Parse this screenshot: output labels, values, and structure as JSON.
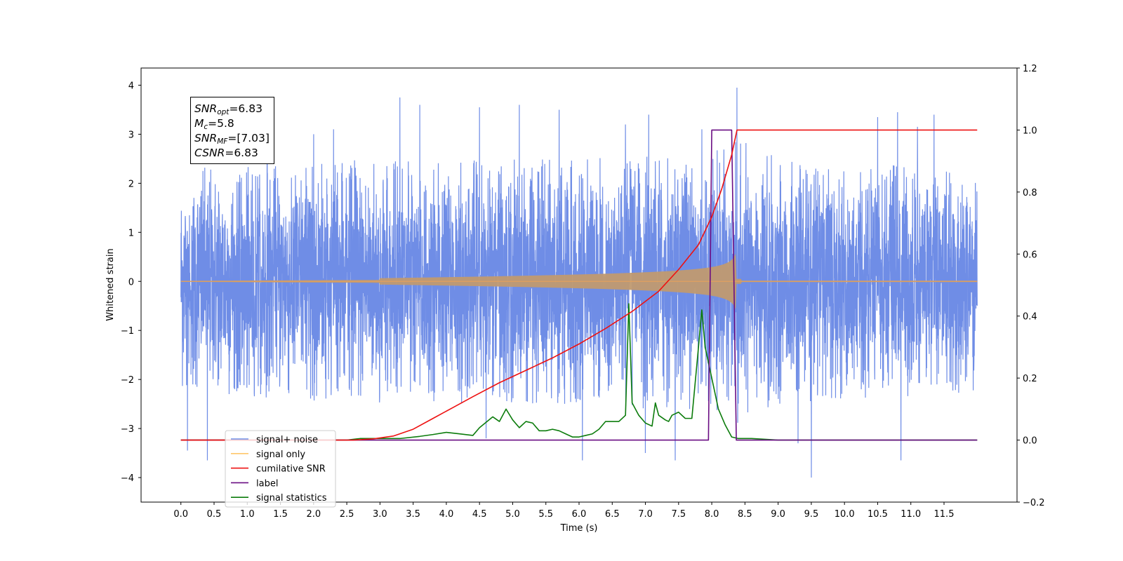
{
  "chart_data": {
    "type": "line",
    "xlabel": "Time (s)",
    "ylabel": "Whitened strain",
    "xlim": [
      -0.6,
      12.6
    ],
    "ylim": [
      -4.5,
      4.35
    ],
    "ylim_right": [
      -0.2,
      1.2
    ],
    "x_ticks": [
      "0.0",
      "0.5",
      "1.0",
      "1.5",
      "2.0",
      "2.5",
      "3.0",
      "3.5",
      "4.0",
      "4.5",
      "5.0",
      "5.5",
      "6.0",
      "6.5",
      "7.0",
      "7.5",
      "8.0",
      "8.5",
      "9.0",
      "9.5",
      "10.0",
      "10.5",
      "11.0",
      "11.5"
    ],
    "y_ticks": [
      "4",
      "3",
      "2",
      "1",
      "0",
      "−1",
      "−2",
      "−3",
      "−4"
    ],
    "y_ticks_right": [
      "1.2",
      "1.0",
      "0.8",
      "0.6",
      "0.4",
      "0.2",
      "0.0",
      "−0.2"
    ],
    "annotation": [
      {
        "var": "SNR",
        "sub": "opt",
        "value": "=6.83"
      },
      {
        "var": "M",
        "sub": "c",
        "value": "=5.8"
      },
      {
        "var": "SNR",
        "sub": "MF",
        "value": "=[7.03]"
      },
      {
        "var": "CSNR",
        "sub": "",
        "value": "=6.83"
      }
    ],
    "noise": {
      "t_start": 0.0,
      "t_end": 12.0,
      "envelope": [
        [
          0.0,
          2.3
        ],
        [
          3.0,
          2.5
        ],
        [
          6.0,
          2.5
        ],
        [
          8.0,
          2.7
        ],
        [
          8.35,
          3.0
        ],
        [
          9.0,
          2.5
        ],
        [
          12.0,
          2.3
        ]
      ],
      "spikes": [
        [
          0.1,
          -3.45
        ],
        [
          0.4,
          -3.65
        ],
        [
          1.3,
          3.3
        ],
        [
          2.0,
          3.0
        ],
        [
          2.3,
          3.1
        ],
        [
          3.3,
          3.75
        ],
        [
          3.6,
          3.6
        ],
        [
          4.5,
          3.55
        ],
        [
          4.6,
          -3.2
        ],
        [
          5.1,
          3.6
        ],
        [
          5.7,
          3.5
        ],
        [
          6.05,
          -3.65
        ],
        [
          6.7,
          3.2
        ],
        [
          7.0,
          -3.5
        ],
        [
          7.05,
          3.4
        ],
        [
          7.45,
          -3.65
        ],
        [
          7.85,
          3.1
        ],
        [
          8.38,
          3.95
        ],
        [
          8.38,
          -4.1
        ],
        [
          9.3,
          -3.3
        ],
        [
          9.5,
          -4.0
        ],
        [
          10.5,
          3.35
        ],
        [
          10.8,
          3.45
        ],
        [
          10.85,
          -3.65
        ],
        [
          11.1,
          3.15
        ],
        [
          11.35,
          3.4
        ]
      ]
    },
    "series": [
      {
        "name": "signal+ noise",
        "color": "#6f8de6"
      },
      {
        "name": "signal only",
        "color": "#ffc76b"
      },
      {
        "name": "cumilative SNR",
        "color": "#ee1111",
        "x": [
          0.0,
          2.6,
          2.9,
          3.2,
          3.5,
          3.8,
          4.1,
          4.4,
          4.8,
          5.2,
          5.6,
          6.0,
          6.4,
          6.8,
          7.2,
          7.5,
          7.8,
          8.0,
          8.15,
          8.3,
          8.38,
          12.0
        ],
        "y": [
          0.0,
          0.0,
          0.004,
          0.013,
          0.035,
          0.07,
          0.105,
          0.14,
          0.185,
          0.225,
          0.265,
          0.31,
          0.36,
          0.415,
          0.48,
          0.55,
          0.63,
          0.72,
          0.81,
          0.92,
          1.0,
          1.0
        ]
      },
      {
        "name": "label",
        "color": "#6a0d83",
        "x": [
          0.0,
          7.95,
          8.0,
          8.3,
          8.37,
          12.0
        ],
        "y": [
          0.0,
          0.0,
          1.0,
          1.0,
          0.0,
          0.0
        ]
      },
      {
        "name": "signal statistics",
        "color": "#0c7c0c",
        "x": [
          0.0,
          2.5,
          2.7,
          3.0,
          3.3,
          3.6,
          3.8,
          4.0,
          4.2,
          4.4,
          4.5,
          4.7,
          4.8,
          4.9,
          5.0,
          5.1,
          5.2,
          5.3,
          5.4,
          5.5,
          5.6,
          5.7,
          5.8,
          5.9,
          6.0,
          6.1,
          6.2,
          6.3,
          6.4,
          6.5,
          6.6,
          6.7,
          6.75,
          6.8,
          6.85,
          6.9,
          7.0,
          7.1,
          7.15,
          7.2,
          7.3,
          7.35,
          7.4,
          7.5,
          7.6,
          7.7,
          7.8,
          7.85,
          7.9,
          8.0,
          8.05,
          8.1,
          8.2,
          8.3,
          8.4,
          8.6,
          9.0,
          12.0
        ],
        "y": [
          0.0,
          0.0,
          0.005,
          0.005,
          0.005,
          0.012,
          0.018,
          0.025,
          0.02,
          0.015,
          0.04,
          0.075,
          0.06,
          0.1,
          0.065,
          0.04,
          0.06,
          0.055,
          0.03,
          0.03,
          0.035,
          0.03,
          0.02,
          0.01,
          0.01,
          0.015,
          0.02,
          0.035,
          0.06,
          0.06,
          0.06,
          0.08,
          0.44,
          0.12,
          0.1,
          0.08,
          0.055,
          0.045,
          0.12,
          0.08,
          0.065,
          0.06,
          0.08,
          0.09,
          0.07,
          0.07,
          0.3,
          0.42,
          0.3,
          0.2,
          0.15,
          0.1,
          0.05,
          0.01,
          0.005,
          0.005,
          0.0,
          0.0
        ]
      }
    ],
    "legend_position": "lower-left",
    "grid": false
  }
}
